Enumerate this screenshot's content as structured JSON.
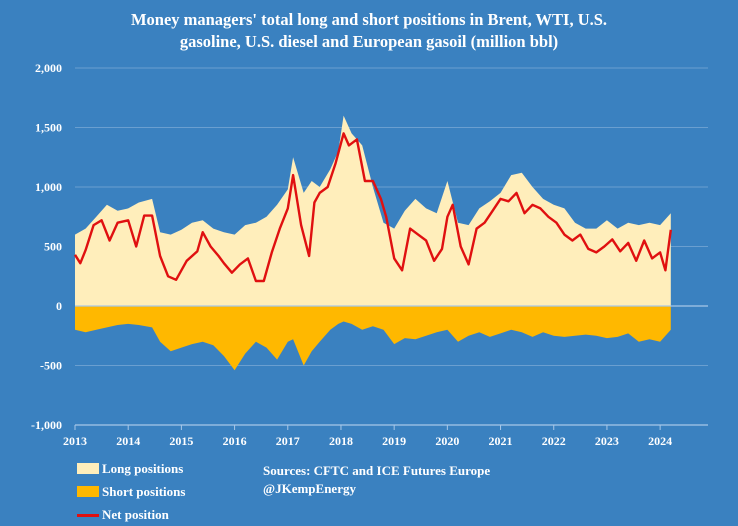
{
  "chart_data": {
    "type": "area",
    "title_line1": "Money managers' total long and short positions in Brent, WTI, U.S.",
    "title_line2": "gasoline, U.S. diesel and European gasoil  (million bbl)",
    "xlim": [
      2013,
      2024.9
    ],
    "ylim": [
      -1000,
      2000
    ],
    "x_ticks": [
      2013,
      2014,
      2015,
      2016,
      2017,
      2018,
      2019,
      2020,
      2021,
      2022,
      2023,
      2024
    ],
    "x_tick_labels": [
      "2013",
      "2014",
      "2015",
      "2016",
      "2017",
      "2018",
      "2019",
      "2020",
      "2021",
      "2022",
      "2023",
      "2024"
    ],
    "y_ticks": [
      -1000,
      -500,
      0,
      500,
      1000,
      1500,
      2000
    ],
    "y_tick_labels": [
      "-1,000",
      "-500",
      "0",
      "500",
      "1,000",
      "1,500",
      "2,000"
    ],
    "grid": "horizontal",
    "legend_position": "bottom-left",
    "sources": [
      "Sources: CFTC and ICE Futures Europe",
      "@JKempEnergy"
    ],
    "series": [
      {
        "name": "Long positions",
        "color": "#ffeebb",
        "x": [
          2013.0,
          2013.2,
          2013.4,
          2013.6,
          2013.8,
          2014.0,
          2014.2,
          2014.45,
          2014.6,
          2014.8,
          2015.0,
          2015.2,
          2015.4,
          2015.6,
          2015.8,
          2016.0,
          2016.2,
          2016.4,
          2016.6,
          2016.8,
          2017.0,
          2017.1,
          2017.3,
          2017.45,
          2017.6,
          2017.8,
          2017.95,
          2018.05,
          2018.2,
          2018.4,
          2018.6,
          2018.8,
          2019.0,
          2019.2,
          2019.4,
          2019.6,
          2019.8,
          2020.0,
          2020.2,
          2020.4,
          2020.6,
          2020.8,
          2021.0,
          2021.2,
          2021.4,
          2021.6,
          2021.8,
          2022.0,
          2022.2,
          2022.4,
          2022.6,
          2022.8,
          2023.0,
          2023.2,
          2023.4,
          2023.6,
          2023.8,
          2024.0,
          2024.2
        ],
        "values": [
          600,
          650,
          750,
          850,
          800,
          820,
          870,
          900,
          620,
          600,
          640,
          700,
          720,
          650,
          620,
          600,
          680,
          700,
          750,
          850,
          980,
          1250,
          950,
          1050,
          1000,
          1150,
          1300,
          1600,
          1450,
          1350,
          1000,
          700,
          650,
          800,
          900,
          820,
          780,
          1050,
          700,
          680,
          820,
          880,
          950,
          1100,
          1120,
          1000,
          900,
          850,
          820,
          700,
          650,
          650,
          720,
          650,
          700,
          680,
          700,
          680,
          780
        ]
      },
      {
        "name": "Short positions",
        "color": "#ffb800",
        "x": [
          2013.0,
          2013.2,
          2013.4,
          2013.6,
          2013.8,
          2014.0,
          2014.2,
          2014.45,
          2014.6,
          2014.8,
          2015.0,
          2015.2,
          2015.4,
          2015.6,
          2015.8,
          2016.0,
          2016.2,
          2016.4,
          2016.6,
          2016.8,
          2017.0,
          2017.1,
          2017.3,
          2017.45,
          2017.6,
          2017.8,
          2017.95,
          2018.05,
          2018.2,
          2018.4,
          2018.6,
          2018.8,
          2019.0,
          2019.2,
          2019.4,
          2019.6,
          2019.8,
          2020.0,
          2020.2,
          2020.4,
          2020.6,
          2020.8,
          2021.0,
          2021.2,
          2021.4,
          2021.6,
          2021.8,
          2022.0,
          2022.2,
          2022.4,
          2022.6,
          2022.8,
          2023.0,
          2023.2,
          2023.4,
          2023.6,
          2023.8,
          2024.0,
          2024.2
        ],
        "values": [
          -200,
          -220,
          -200,
          -180,
          -160,
          -150,
          -160,
          -180,
          -300,
          -380,
          -350,
          -320,
          -300,
          -330,
          -420,
          -540,
          -400,
          -300,
          -350,
          -450,
          -300,
          -280,
          -500,
          -380,
          -300,
          -200,
          -150,
          -130,
          -150,
          -200,
          -170,
          -200,
          -320,
          -270,
          -280,
          -250,
          -220,
          -200,
          -300,
          -250,
          -220,
          -260,
          -230,
          -200,
          -220,
          -260,
          -220,
          -250,
          -260,
          -250,
          -240,
          -250,
          -270,
          -260,
          -230,
          -300,
          -280,
          -300,
          -200
        ]
      },
      {
        "name": "Net position",
        "color": "#e01010",
        "x": [
          2013.0,
          2013.1,
          2013.2,
          2013.35,
          2013.5,
          2013.65,
          2013.8,
          2014.0,
          2014.15,
          2014.3,
          2014.45,
          2014.6,
          2014.75,
          2014.9,
          2015.1,
          2015.3,
          2015.4,
          2015.55,
          2015.7,
          2015.8,
          2015.95,
          2016.1,
          2016.25,
          2016.4,
          2016.55,
          2016.7,
          2016.85,
          2017.0,
          2017.1,
          2017.25,
          2017.4,
          2017.5,
          2017.6,
          2017.75,
          2017.9,
          2018.05,
          2018.15,
          2018.3,
          2018.45,
          2018.6,
          2018.75,
          2018.85,
          2019.0,
          2019.15,
          2019.3,
          2019.45,
          2019.6,
          2019.75,
          2019.9,
          2020.0,
          2020.1,
          2020.25,
          2020.4,
          2020.55,
          2020.7,
          2020.85,
          2021.0,
          2021.15,
          2021.3,
          2021.45,
          2021.6,
          2021.75,
          2021.9,
          2022.05,
          2022.2,
          2022.35,
          2022.5,
          2022.65,
          2022.8,
          2022.95,
          2023.1,
          2023.25,
          2023.4,
          2023.55,
          2023.7,
          2023.85,
          2024.0,
          2024.1,
          2024.2
        ],
        "values": [
          430,
          360,
          470,
          680,
          720,
          550,
          700,
          720,
          500,
          760,
          760,
          420,
          250,
          220,
          380,
          460,
          620,
          500,
          420,
          360,
          280,
          350,
          400,
          210,
          210,
          450,
          650,
          820,
          1100,
          680,
          420,
          870,
          950,
          1000,
          1200,
          1450,
          1350,
          1400,
          1050,
          1050,
          900,
          750,
          400,
          300,
          650,
          600,
          550,
          380,
          480,
          750,
          850,
          500,
          350,
          650,
          700,
          800,
          900,
          880,
          950,
          780,
          850,
          820,
          750,
          700,
          600,
          550,
          600,
          480,
          450,
          500,
          560,
          460,
          530,
          380,
          550,
          400,
          450,
          300,
          640
        ]
      }
    ]
  },
  "legend": [
    {
      "label": "Long positions",
      "color": "#ffeebb"
    },
    {
      "label": "Short positions",
      "color": "#ffb800"
    },
    {
      "label": "Net position",
      "color": "#e01010"
    }
  ]
}
